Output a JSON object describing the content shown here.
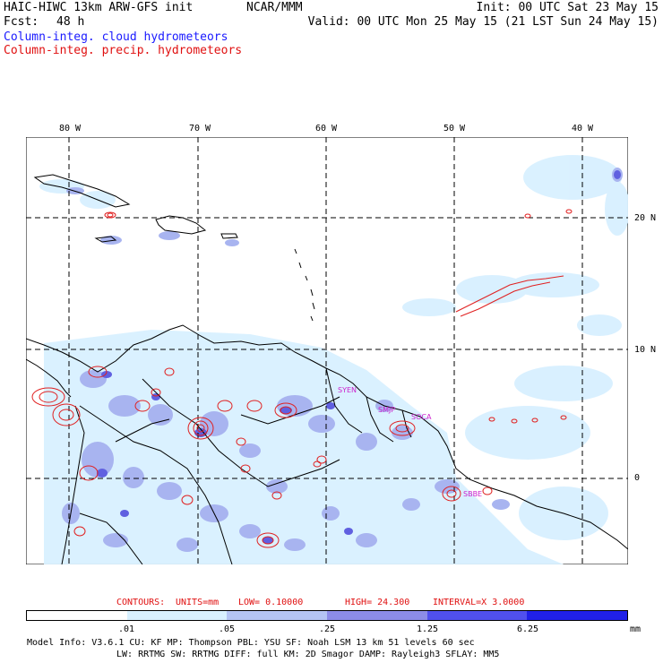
{
  "header": {
    "title_left": "HAIC-HIWC 13km ARW-GFS init",
    "title_center": "NCAR/MMM",
    "init": "Init: 00 UTC Sat 23 May 15",
    "fcst_label": "Fcst:",
    "fcst_value": "48 h",
    "valid": "Valid: 00 UTC Mon 25 May 15 (21 LST Sun 24 May 15)",
    "field1": "Column-integ. cloud hydrometeors",
    "field2": "Column-integ. precip. hydrometeors"
  },
  "map": {
    "lon_labels": [
      "80 W",
      "70 W",
      "60 W",
      "50 W",
      "40 W"
    ],
    "lat_labels": [
      "20 N",
      "10 N",
      "0"
    ],
    "stations": [
      "SYEN",
      "SMJP",
      "SOCA",
      "SBBE"
    ]
  },
  "contours_line": {
    "contours_label": "CONTOURS:",
    "units": "UNITS=mm",
    "low": "LOW= 0.10000",
    "high": "HIGH= 24.300",
    "interval": "INTERVAL=X 3.0000"
  },
  "colorbar": {
    "labels": [
      ".01",
      ".05",
      ".25",
      "1.25",
      "6.25"
    ],
    "units": "mm",
    "colors": [
      "#ffffff",
      "#d8f0ff",
      "#b4c4f4",
      "#8c8ce8",
      "#5050ee",
      "#2020e8"
    ]
  },
  "model_info": {
    "line1": "Model Info: V3.6.1   CU: KF    MP: Thompson   PBL: YSU    SF: Noah LSM    13 km   51 levels   60 sec",
    "line2": "LW: RRTMG   SW: RRTMG  DIFF: full   KM: 2D Smagor DAMP: Rayleigh3  SFLAY: MM5"
  },
  "colors": {
    "cloud_label": "#1a1aff",
    "precip_label": "#e01010",
    "precip_contour": "#e02020",
    "station": "#cc22cc"
  }
}
